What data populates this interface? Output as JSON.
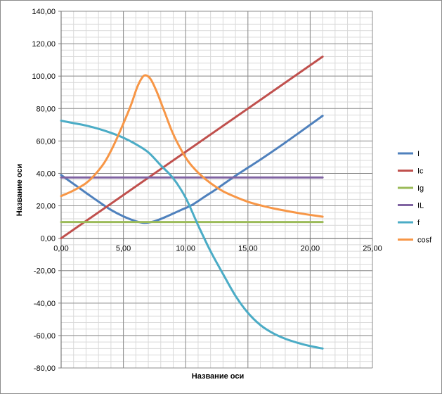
{
  "chart_data": {
    "type": "line",
    "title": "",
    "xlabel": "Название оси",
    "ylabel": "Название оси",
    "xlim": [
      0,
      25
    ],
    "ylim": [
      -80,
      140
    ],
    "x_major_step": 5,
    "x_minor_step": 1,
    "y_major_step": 20,
    "y_minor_step": 4,
    "x_ticks": [
      "0,00",
      "5,00",
      "10,00",
      "15,00",
      "20,00",
      "25,00"
    ],
    "y_ticks": [
      "-80,00",
      "-60,00",
      "-40,00",
      "-20,00",
      "0,00",
      "20,00",
      "40,00",
      "60,00",
      "80,00",
      "100,00",
      "120,00",
      "140,00"
    ],
    "grid": true,
    "legend_position": "right",
    "series": [
      {
        "name": "I",
        "color": "#4f81bd",
        "points": [
          [
            0,
            39
          ],
          [
            1,
            33.5
          ],
          [
            2,
            28
          ],
          [
            3,
            22.6
          ],
          [
            4,
            17.5
          ],
          [
            5,
            13.5
          ],
          [
            6,
            10.5
          ],
          [
            6.7,
            9.5
          ],
          [
            7.5,
            10.5
          ],
          [
            8.5,
            13.5
          ],
          [
            9.5,
            17
          ],
          [
            10.5,
            20.5
          ],
          [
            11.5,
            25.5
          ],
          [
            12.5,
            30.5
          ],
          [
            14,
            38.5
          ],
          [
            16,
            48.5
          ],
          [
            18,
            59
          ],
          [
            21,
            75.5
          ]
        ]
      },
      {
        "name": "Ic",
        "color": "#c0504d",
        "points": [
          [
            0,
            0
          ],
          [
            21,
            112
          ]
        ]
      },
      {
        "name": "Ig",
        "color": "#9bbb59",
        "points": [
          [
            0,
            10
          ],
          [
            21,
            10
          ]
        ]
      },
      {
        "name": "IL",
        "color": "#8064a2",
        "points": [
          [
            0,
            37.5
          ],
          [
            21,
            37.5
          ]
        ]
      },
      {
        "name": "f",
        "color": "#4bacc6",
        "points": [
          [
            0,
            72.5
          ],
          [
            1,
            71
          ],
          [
            2,
            69.5
          ],
          [
            3,
            67.5
          ],
          [
            4,
            65
          ],
          [
            5,
            62
          ],
          [
            6,
            58
          ],
          [
            7,
            53
          ],
          [
            8,
            45
          ],
          [
            9,
            37
          ],
          [
            10,
            25
          ],
          [
            11,
            8
          ],
          [
            12,
            -8
          ],
          [
            13,
            -22
          ],
          [
            14,
            -35.5
          ],
          [
            15,
            -46
          ],
          [
            16,
            -53.5
          ],
          [
            17,
            -58.5
          ],
          [
            18,
            -62
          ],
          [
            19,
            -64.5
          ],
          [
            20,
            -66.5
          ],
          [
            21,
            -68
          ]
        ]
      },
      {
        "name": "cosf",
        "color": "#f79646",
        "points": [
          [
            0,
            26
          ],
          [
            1,
            29.5
          ],
          [
            2,
            34
          ],
          [
            2.8,
            40
          ],
          [
            3.5,
            47
          ],
          [
            4.2,
            57
          ],
          [
            4.9,
            69
          ],
          [
            5.6,
            82
          ],
          [
            6.1,
            93
          ],
          [
            6.5,
            99
          ],
          [
            6.8,
            100.5
          ],
          [
            7.2,
            98
          ],
          [
            7.7,
            90
          ],
          [
            8.3,
            78
          ],
          [
            8.9,
            66
          ],
          [
            9.5,
            56.5
          ],
          [
            10.2,
            47.5
          ],
          [
            11,
            40.5
          ],
          [
            12,
            34
          ],
          [
            13,
            29
          ],
          [
            14,
            25.5
          ],
          [
            15,
            22.5
          ],
          [
            16,
            20.3
          ],
          [
            17,
            18.5
          ],
          [
            18,
            17
          ],
          [
            19,
            15.6
          ],
          [
            20,
            14.4
          ],
          [
            21,
            13.3
          ]
        ]
      }
    ]
  }
}
